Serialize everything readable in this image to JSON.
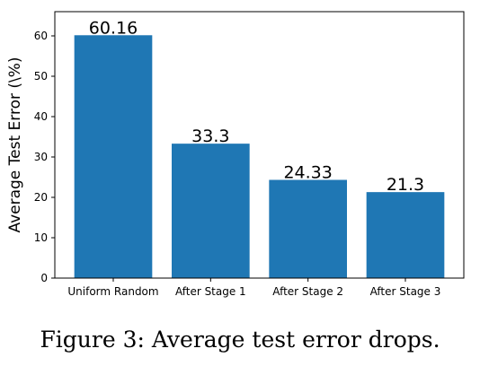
{
  "chart_data": {
    "type": "bar",
    "categories": [
      "Uniform Random",
      "After Stage 1",
      "After Stage 2",
      "After Stage 3"
    ],
    "values": [
      60.16,
      33.3,
      24.33,
      21.3
    ],
    "data_labels": [
      "60.16",
      "33.3",
      "24.33",
      "21.3"
    ],
    "ylabel": "Average Test Error (\\%)",
    "ylim": [
      0,
      66
    ],
    "yticks": [
      0,
      10,
      20,
      30,
      40,
      50,
      60
    ],
    "grid": false,
    "bar_color": "#1f77b4"
  },
  "caption": "Figure 3:  Average test error drops."
}
